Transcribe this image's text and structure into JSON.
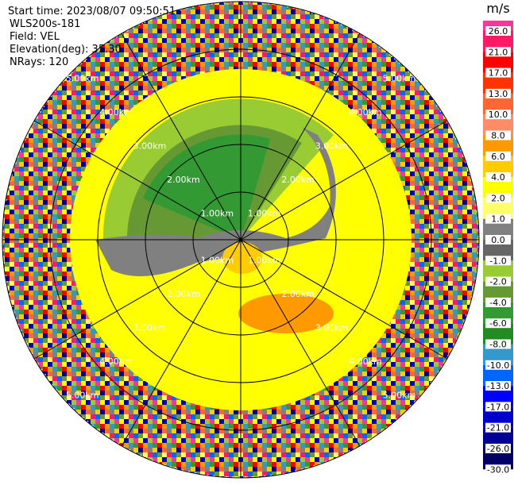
{
  "header": {
    "start_time": "Start time: 2023/08/07 09:50:51",
    "instrument": "WLS200s-181",
    "field": "Field: VEL",
    "elevation": "Elevation(deg): 35.30",
    "nrays": "NRays: 120"
  },
  "range_rings": [
    "1.00km",
    "2.00km",
    "3.00km",
    "4.00km",
    "5.00km"
  ],
  "colorbar": {
    "unit": "m/s",
    "levels": [
      {
        "value": 26,
        "label": "26.0"
      },
      {
        "value": 21,
        "label": "21.0"
      },
      {
        "value": 17,
        "label": "17.0"
      },
      {
        "value": 13,
        "label": "13.0"
      },
      {
        "value": 10,
        "label": "10.0"
      },
      {
        "value": 8,
        "label": "8.0"
      },
      {
        "value": 6,
        "label": "6.0"
      },
      {
        "value": 4,
        "label": "4.0"
      },
      {
        "value": 2,
        "label": "2.0"
      },
      {
        "value": 1,
        "label": "1.0"
      },
      {
        "value": 0,
        "label": "0.0"
      },
      {
        "value": -1,
        "label": "-1.0"
      },
      {
        "value": -2,
        "label": "-2.0"
      },
      {
        "value": -4,
        "label": "-4.0"
      },
      {
        "value": -6,
        "label": "-6.0"
      },
      {
        "value": -8,
        "label": "-8.0"
      },
      {
        "value": -10,
        "label": "-10.0"
      },
      {
        "value": -13,
        "label": "-13.0"
      },
      {
        "value": -17,
        "label": "-17.0"
      },
      {
        "value": -21,
        "label": "-21.0"
      },
      {
        "value": -26,
        "label": "-26.0"
      },
      {
        "value": -30,
        "label": "-30.0"
      }
    ],
    "colors": [
      "#ff3399",
      "#ff1a66",
      "#ff0000",
      "#ff3300",
      "#ff6633",
      "#ff8c66",
      "#ff9900",
      "#ffcc00",
      "#ffff00",
      "#ffff66",
      "#808080",
      "#666666",
      "#99cc33",
      "#669933",
      "#339933",
      "#228b22",
      "#3399cc",
      "#0066ff",
      "#0000ff",
      "#0000cc",
      "#000099",
      "#000066"
    ]
  }
}
